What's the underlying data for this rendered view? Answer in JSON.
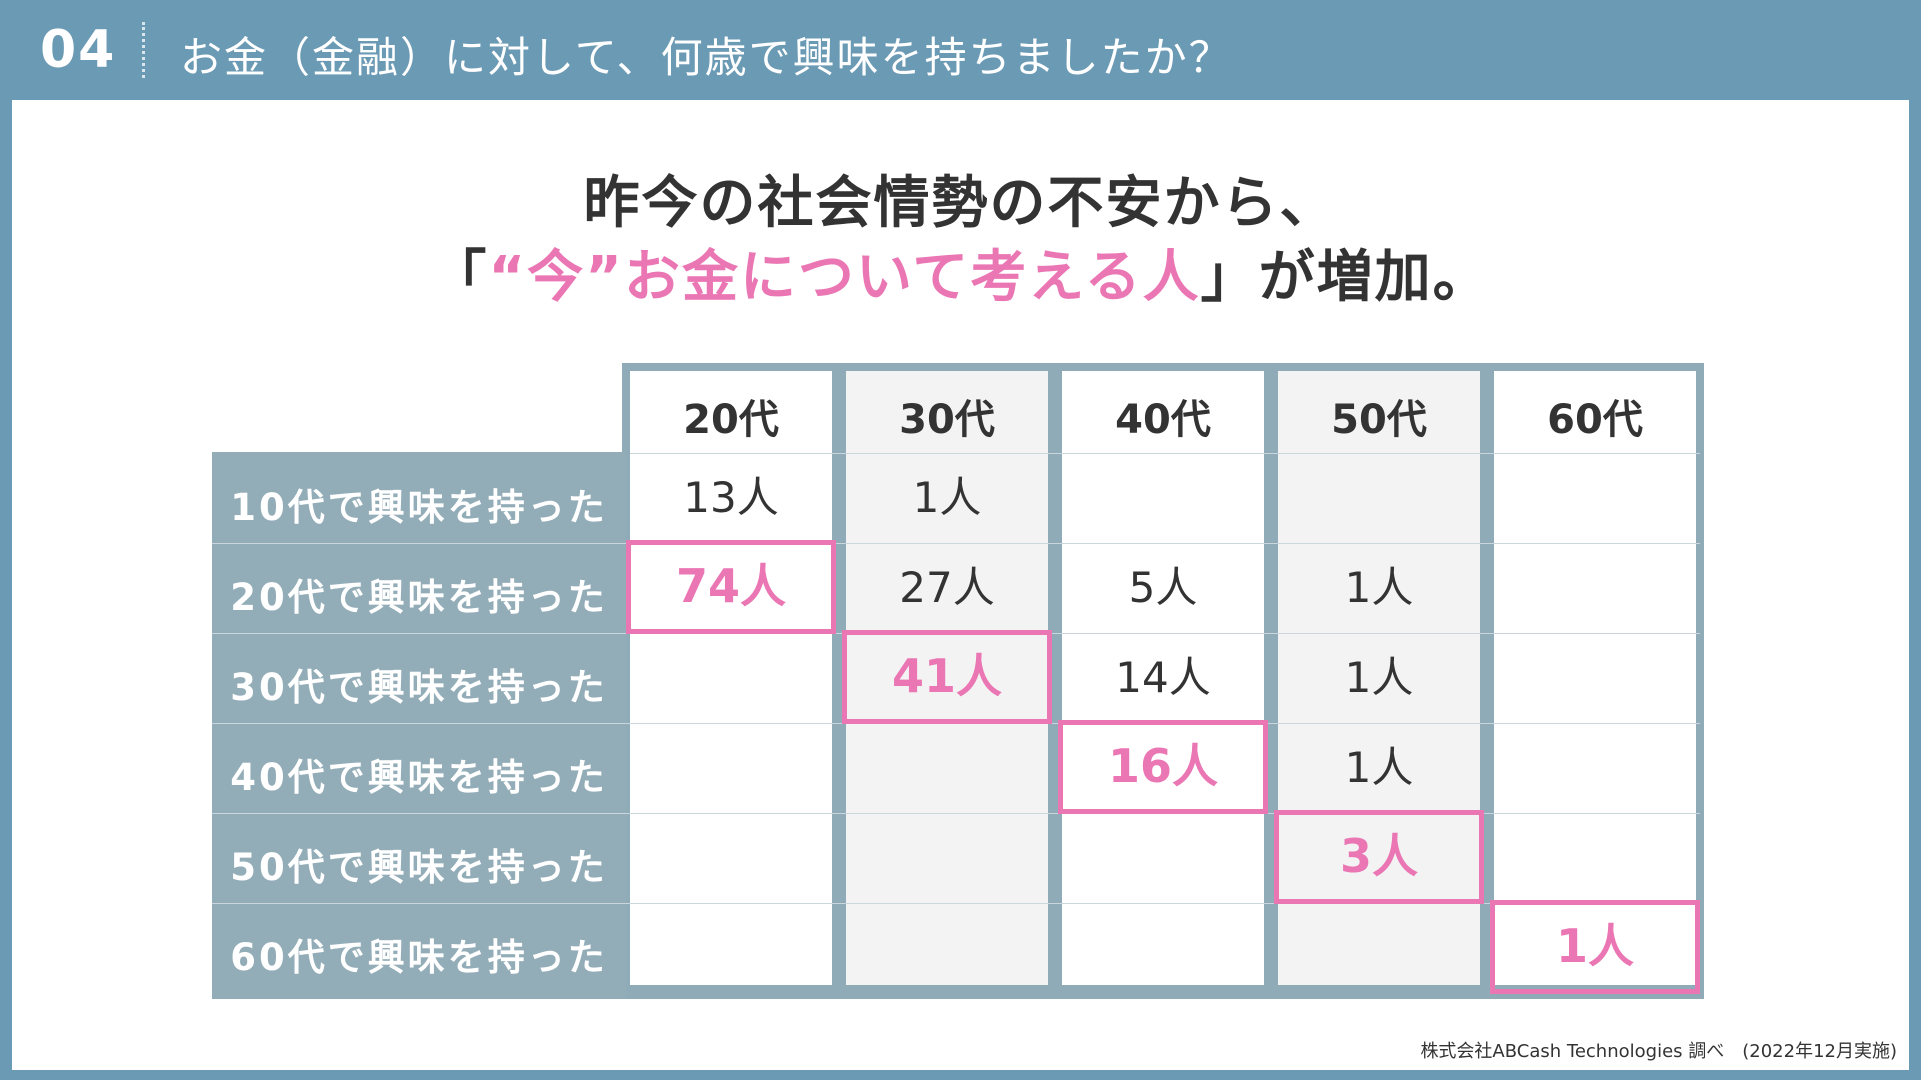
{
  "header": {
    "section_number": "04",
    "question": "お金（金融）に対して、何歳で興味を持ちましたか？"
  },
  "headline": {
    "line1": "昨今の社会情勢の不安から、",
    "line2_open": "「",
    "line2_highlight": "“今”お金について考える人",
    "line2_close": "」が増加。"
  },
  "source": "株式会社ABCash Technologies 調べ　(2022年12月実施)",
  "chart_data": {
    "type": "table",
    "columns": [
      "20代",
      "30代",
      "40代",
      "50代",
      "60代"
    ],
    "rows": [
      {
        "label": "10代で興味を持った",
        "values": [
          "13人",
          "1人",
          "",
          "",
          ""
        ]
      },
      {
        "label": "20代で興味を持った",
        "values": [
          "74人",
          "27人",
          "5人",
          "1人",
          ""
        ]
      },
      {
        "label": "30代で興味を持った",
        "values": [
          "",
          "41人",
          "14人",
          "1人",
          ""
        ]
      },
      {
        "label": "40代で興味を持った",
        "values": [
          "",
          "",
          "16人",
          "1人",
          ""
        ]
      },
      {
        "label": "50代で興味を持った",
        "values": [
          "",
          "",
          "",
          "3人",
          ""
        ]
      },
      {
        "label": "60代で興味を持った",
        "values": [
          "",
          "",
          "",
          "",
          "1人"
        ]
      }
    ],
    "highlighted_cells": [
      [
        1,
        0
      ],
      [
        2,
        1
      ],
      [
        3,
        2
      ],
      [
        4,
        3
      ],
      [
        5,
        4
      ]
    ],
    "colors": {
      "highlight": "#ea76b4",
      "header_bg": "#6b9ab4",
      "row_label_bg": "#93adb8"
    }
  }
}
